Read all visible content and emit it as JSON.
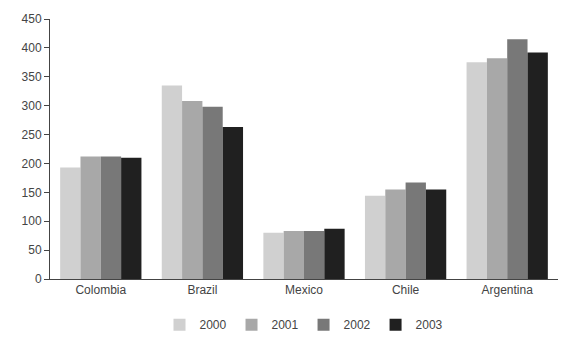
{
  "chart_data": {
    "type": "bar",
    "categories": [
      "Colombia",
      "Brazil",
      "Mexico",
      "Chile",
      "Argentina"
    ],
    "series": [
      {
        "name": "2000",
        "color": "#d0d0d0",
        "values": [
          193,
          335,
          80,
          144,
          375
        ]
      },
      {
        "name": "2001",
        "color": "#a8a8a8",
        "values": [
          212,
          308,
          83,
          155,
          382
        ]
      },
      {
        "name": "2002",
        "color": "#787878",
        "values": [
          212,
          298,
          83,
          167,
          415
        ]
      },
      {
        "name": "2003",
        "color": "#202020",
        "values": [
          210,
          263,
          87,
          155,
          392
        ]
      }
    ],
    "ylim": [
      0,
      450
    ],
    "yticks": [
      0,
      50,
      100,
      150,
      200,
      250,
      300,
      350,
      400,
      450
    ],
    "grid": false,
    "legend": "bottom"
  }
}
